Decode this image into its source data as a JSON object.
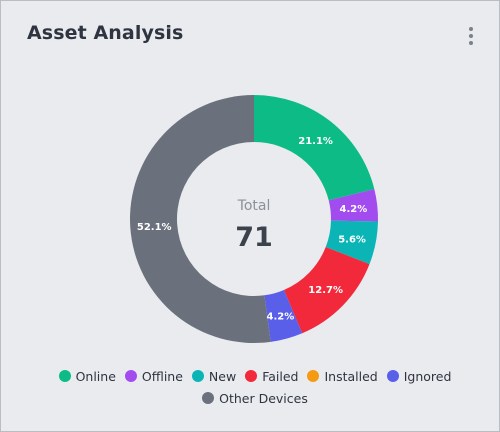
{
  "card": {
    "title": "Asset Analysis",
    "menu_icon": "more-vertical-icon"
  },
  "colors": {
    "card_background": "#e9ebef",
    "title": "#2f3540",
    "center_label": "#8c919a",
    "center_value": "#3c424c"
  },
  "chart_data": {
    "type": "pie",
    "donut": true,
    "center_label": "Total",
    "center_value": "71",
    "slices": [
      {
        "label": "Online",
        "value": 21.1,
        "value_label": "21.1%",
        "color": "#0dbb86"
      },
      {
        "label": "Offline",
        "value": 4.2,
        "value_label": "4.2%",
        "color": "#a24cf0"
      },
      {
        "label": "New",
        "value": 5.6,
        "value_label": "5.6%",
        "color": "#0bb5b6"
      },
      {
        "label": "Failed",
        "value": 12.7,
        "value_label": "12.7%",
        "color": "#f2283b"
      },
      {
        "label": "Installed",
        "value": 0,
        "value_label": "",
        "color": "#f49b13"
      },
      {
        "label": "Ignored",
        "value": 4.2,
        "value_label": "4.2%",
        "color": "#5a5fea"
      },
      {
        "label": "Other Devices",
        "value": 52.1,
        "value_label": "52.1%",
        "color": "#6b717c"
      }
    ],
    "legend_position": "bottom"
  }
}
